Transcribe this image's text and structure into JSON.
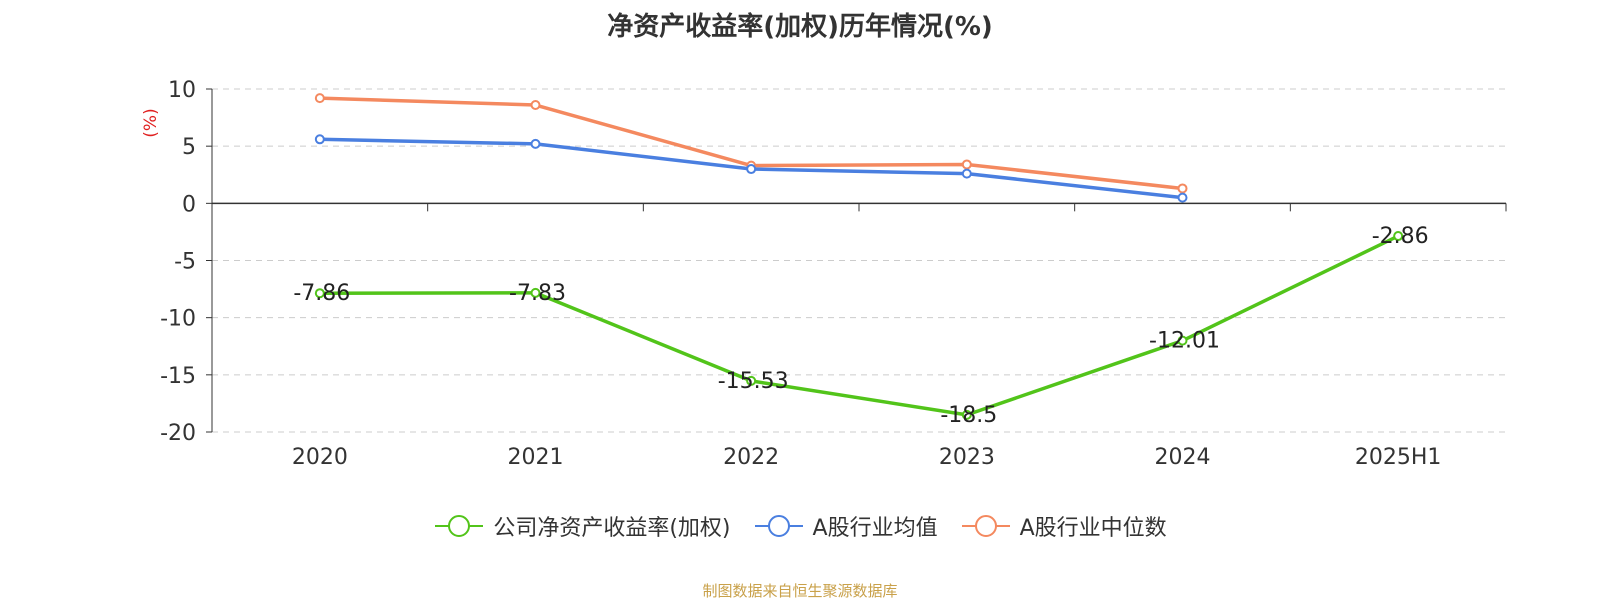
{
  "page": {
    "source_note": "制图数据来自恒生聚源数据库"
  },
  "chart_data": {
    "type": "line",
    "title": "净资产收益率(加权)历年情况(%)",
    "ylabel": "(%)",
    "ylim": [
      -20,
      10
    ],
    "yticks": [
      10,
      5,
      0,
      -5,
      -10,
      -15,
      -20
    ],
    "grid": true,
    "legend_position": "bottom",
    "categories": [
      "2020",
      "2021",
      "2022",
      "2023",
      "2024",
      "2025H1"
    ],
    "series": [
      {
        "name": "公司净资产收益率(加权)",
        "color": "#52c41a",
        "values": [
          -7.86,
          -7.83,
          -15.53,
          -18.5,
          -12.01,
          -2.86
        ],
        "labels": [
          "-7.86",
          "-7.83",
          "-15.53",
          "-18.5",
          "-12.01",
          "-2.86"
        ]
      },
      {
        "name": "A股行业均值",
        "color": "#4a7fe0",
        "values": [
          5.6,
          5.2,
          3.0,
          2.6,
          0.5,
          null
        ]
      },
      {
        "name": "A股行业中位数",
        "color": "#f4895f",
        "values": [
          9.2,
          8.6,
          3.3,
          3.4,
          1.3,
          null
        ]
      }
    ]
  }
}
